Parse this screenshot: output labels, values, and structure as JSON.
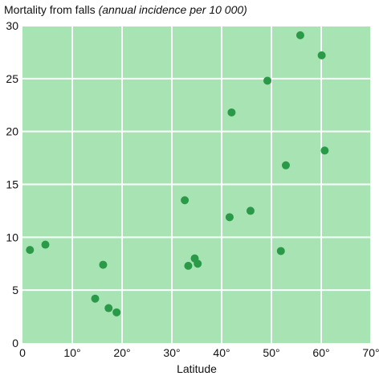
{
  "chart_data": {
    "type": "scatter",
    "title": "Mortality from falls",
    "subtitle": "(annual incidence per 10 000)",
    "xlabel": "Latitude",
    "ylabel": "",
    "xlim": [
      0,
      70
    ],
    "ylim": [
      0,
      30
    ],
    "x_ticks": [
      0,
      10,
      20,
      30,
      40,
      50,
      60,
      70
    ],
    "x_tick_labels": [
      "0",
      "10°",
      "20°",
      "30°",
      "40°",
      "50°",
      "60°",
      "70°"
    ],
    "y_ticks": [
      0,
      5,
      10,
      15,
      20,
      25,
      30
    ],
    "y_tick_labels": [
      "0",
      "5",
      "10",
      "15",
      "20",
      "25",
      "30"
    ],
    "grid": true,
    "colors": {
      "plot_background": "#a8e3b4",
      "grid": "#ffffff",
      "marker": "#2a9a48"
    },
    "series": [
      {
        "x": [
          1.5,
          4.6,
          16.2,
          14.6,
          17.3,
          18.9,
          32.6,
          33.3,
          34.6,
          35.2,
          41.6,
          42.0,
          45.8,
          49.2,
          51.9,
          52.9,
          55.8,
          60.1,
          60.7
        ],
        "y": [
          8.8,
          9.3,
          7.4,
          4.2,
          3.3,
          2.9,
          13.5,
          7.3,
          8.0,
          7.5,
          11.9,
          21.8,
          12.5,
          24.8,
          8.7,
          16.8,
          29.1,
          27.2,
          18.2
        ]
      }
    ]
  }
}
